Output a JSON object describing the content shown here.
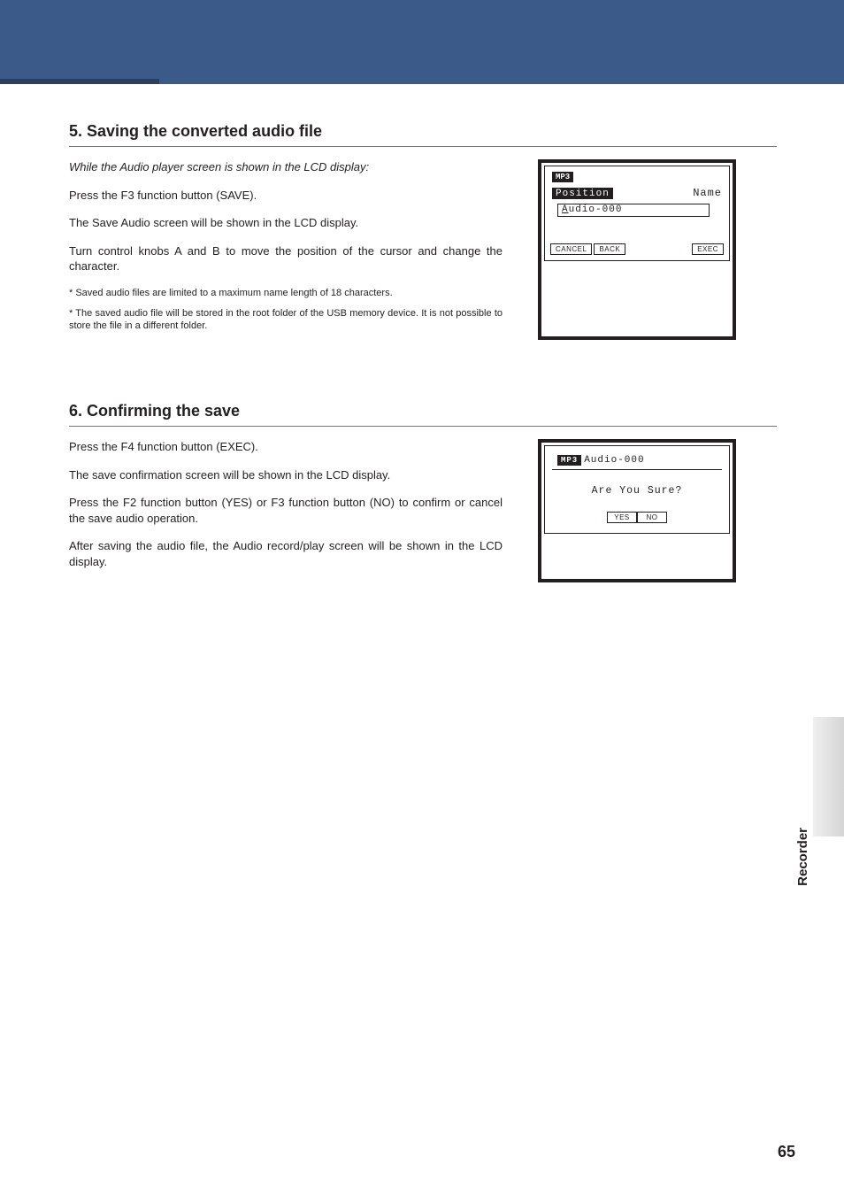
{
  "colors": {
    "header_bg": "#3b5a8a",
    "header_accent": "#2b3f63",
    "text": "#231f20",
    "rule": "#767676",
    "tab_grad_from": "#d5d5d5",
    "tab_grad_to": "#f0f0f0"
  },
  "typography": {
    "body_font": "Myriad Pro, Segoe UI, Arial, sans-serif",
    "mono_font": "Courier New, monospace",
    "section_title_size_pt": 14,
    "body_size_pt": 10,
    "note_size_pt": 8,
    "side_label_size_pt": 12,
    "pagenum_size_pt": 14
  },
  "section5": {
    "title": "5. Saving the converted audio file",
    "intro": "While the Audio player screen is shown in the LCD display:",
    "p1": "Press the F3 function button (SAVE).",
    "p2": "The Save Audio screen will be shown in the LCD display.",
    "p3": "Turn control knobs A and B to move the position of the cursor and change the character.",
    "note1": "* Saved audio files are limited to a maximum name length of 18 characters.",
    "note2": "* The saved audio file will be stored in the root folder of the USB memory device.  It is not possible to store the file in a different folder.",
    "lcd": {
      "badge": "MP3",
      "position_label": "Position",
      "name_label": "Name",
      "filename_prefix": "A",
      "filename_rest": "udio-000",
      "btn_cancel": "CANCEL",
      "btn_back": "BACK",
      "btn_exec": "EXEC"
    }
  },
  "section6": {
    "title": "6. Confirming the save",
    "p1": "Press the F4 function button (EXEC).",
    "p2": "The save confirmation screen will be shown in the LCD display.",
    "p3": "Press the F2 function button (YES) or F3 function button (NO) to confirm or cancel the save audio operation.",
    "p4": "After saving the audio file, the Audio record/play screen will be shown in the LCD display.",
    "lcd": {
      "badge": "MP3",
      "filename": "Audio-000",
      "message": "Are You Sure?",
      "btn_yes": "YES",
      "btn_no": "NO"
    }
  },
  "side_label": "Recorder",
  "page_number": "65"
}
